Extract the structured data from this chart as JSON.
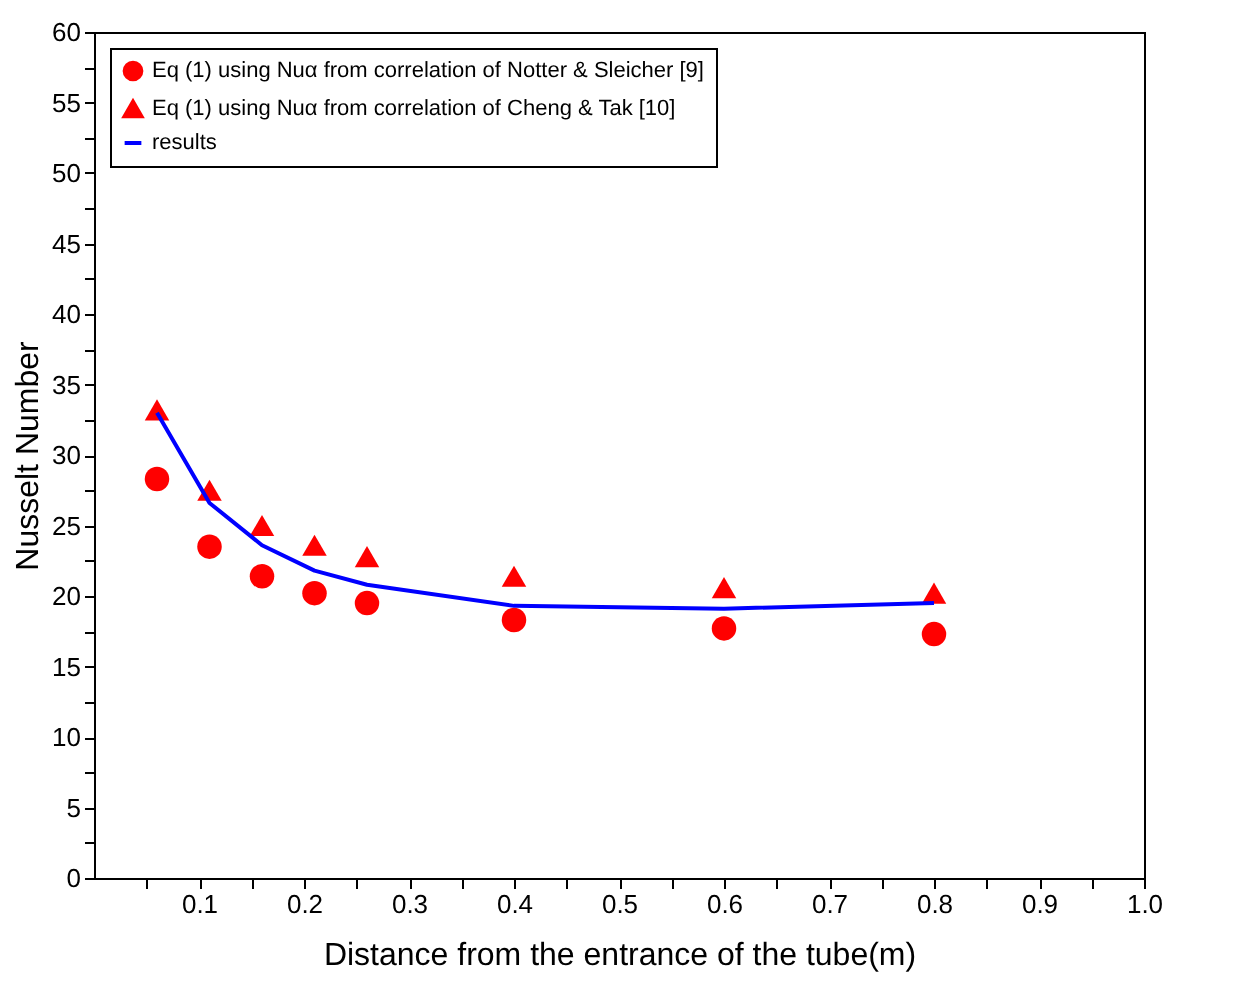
{
  "chart_data": {
    "type": "scatter",
    "xlabel": "Distance from the entrance of the tube(m)",
    "ylabel": "Nusselt Number",
    "x": [
      0.06,
      0.11,
      0.16,
      0.21,
      0.26,
      0.4,
      0.6,
      0.8
    ],
    "series": [
      {
        "name": "Eq (1) using Nuα from correlation of Notter & Sleicher [9]",
        "marker": "circle",
        "color": "#ff0000",
        "values": [
          28.3,
          23.5,
          21.4,
          20.2,
          19.5,
          18.3,
          17.7,
          17.3
        ]
      },
      {
        "name": "Eq (1) using Nuα from correlation of Cheng & Tak [10]",
        "marker": "triangle",
        "color": "#ff0000",
        "values": [
          33.2,
          27.5,
          25.0,
          23.6,
          22.8,
          21.4,
          20.6,
          20.2
        ]
      },
      {
        "name": "results",
        "type": "line",
        "marker": "none",
        "line_style": "solid",
        "color": "#0000ff",
        "values": [
          33.0,
          26.6,
          23.6,
          21.8,
          20.8,
          19.3,
          19.1,
          19.5
        ]
      }
    ],
    "xlim": [
      0,
      1.0
    ],
    "xticks": [
      {
        "value": 0.05,
        "label": null
      },
      0.1,
      {
        "value": 0.15,
        "label": null
      },
      0.2,
      {
        "value": 0.25,
        "label": null
      },
      0.3,
      {
        "value": 0.35,
        "label": null
      },
      0.4,
      {
        "value": 0.45,
        "label": null
      },
      0.5,
      {
        "value": 0.55,
        "label": null
      },
      0.6,
      {
        "value": 0.65,
        "label": null
      },
      0.7,
      {
        "value": 0.75,
        "label": null
      },
      0.8,
      {
        "value": 0.85,
        "label": null
      },
      0.9,
      {
        "value": 0.95,
        "label": null
      },
      {
        "value": 1.0,
        "label": "1.0"
      }
    ],
    "ylim": [
      0,
      60
    ],
    "yticks": [
      0,
      {
        "value": 2.5,
        "label": null
      },
      5,
      {
        "value": 7.5,
        "label": null
      },
      10,
      {
        "value": 12.5,
        "label": null
      },
      15,
      {
        "value": 17.5,
        "label": null
      },
      20,
      {
        "value": 22.5,
        "label": null
      },
      25,
      {
        "value": 27.5,
        "label": null
      },
      30,
      {
        "value": 32.5,
        "label": null
      },
      35,
      {
        "value": 37.5,
        "label": null
      },
      40,
      {
        "value": 42.5,
        "label": null
      },
      45,
      {
        "value": 47.5,
        "label": null
      },
      50,
      {
        "value": 52.5,
        "label": null
      },
      55,
      {
        "value": 57.5,
        "label": null
      },
      60
    ],
    "grid": false,
    "legend": "top left"
  }
}
